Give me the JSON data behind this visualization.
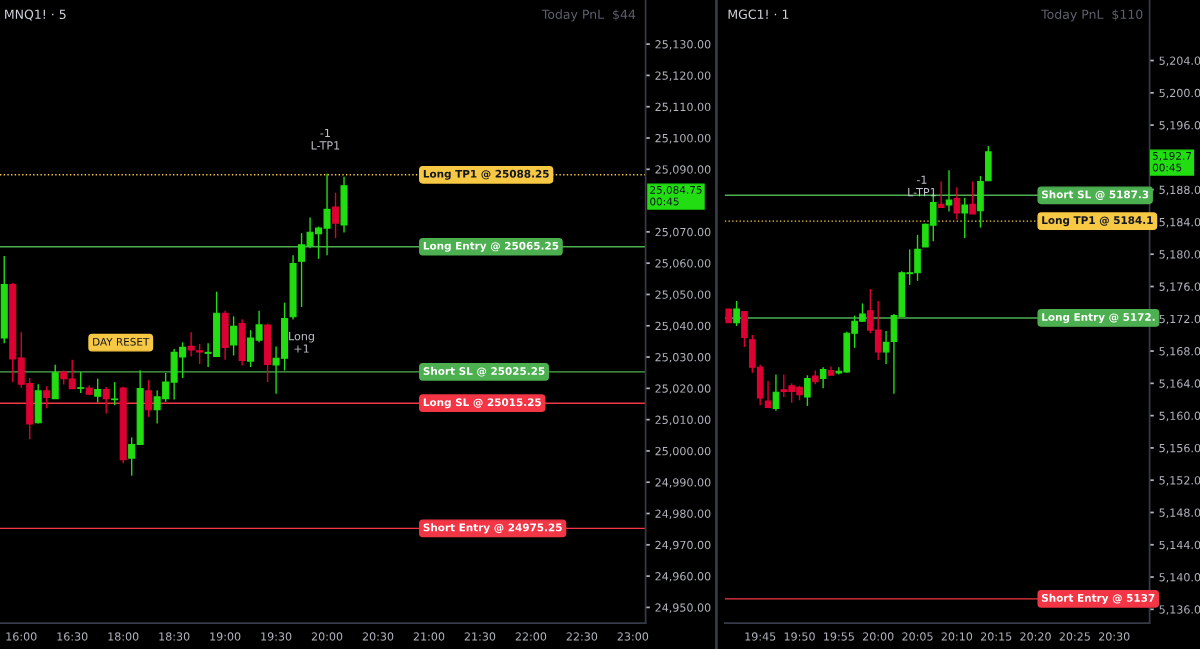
{
  "chart_data": [
    {
      "type": "candlestick",
      "title": "MNQ1! · 5",
      "categories": [
        null,
        null,
        "16:00",
        null,
        null,
        null,
        null,
        null,
        "16:30",
        null,
        null,
        null,
        null,
        null,
        "18:00",
        null,
        null,
        null,
        null,
        null,
        "18:30",
        null,
        null,
        null,
        null,
        null,
        "19:00",
        null,
        null,
        null,
        null,
        null,
        "19:30",
        null,
        null,
        null,
        null,
        null,
        "20:00",
        null,
        null,
        null,
        null,
        null,
        "20:30",
        null,
        null,
        null,
        null,
        null,
        "21:00",
        null,
        null,
        null,
        null,
        null,
        "21:30",
        null,
        null,
        null,
        null,
        null,
        "22:00",
        null,
        null,
        null,
        null,
        null,
        "22:30",
        null,
        null,
        null,
        null,
        null,
        "23:00",
        null
      ],
      "ohlc": [
        [
          25036.1,
          25062.3,
          25034.4,
          25053.2
        ],
        [
          25053.2,
          25053.7,
          25022.0,
          25029.4
        ],
        [
          25029.7,
          25037.9,
          25020.2,
          25021.3
        ],
        [
          25021.5,
          25023.3,
          25003.7,
          25008.6
        ],
        [
          25009.0,
          25021.3,
          25008.8,
          25019.2
        ],
        [
          25019.2,
          25020.7,
          25013.6,
          25017.1
        ],
        [
          25016.7,
          25027.5,
          25016.7,
          25025.0
        ],
        [
          25025.2,
          25025.7,
          25021.2,
          25023.1
        ],
        [
          25023.0,
          25029.1,
          25019.9,
          25019.9
        ],
        [
          25020.0,
          25025.2,
          25018.5,
          25020.2
        ],
        [
          25020.1,
          25021.0,
          25017.8,
          25018.1
        ],
        [
          25017.5,
          25023.1,
          25015.5,
          25019.6
        ],
        [
          25019.6,
          25020.4,
          25012.0,
          25016.7
        ],
        [
          25016.4,
          25022.0,
          25014.6,
          25016.6
        ],
        [
          25020.1,
          25020.5,
          24996.1,
          24997.2
        ],
        [
          24997.7,
          25004.3,
          24992.1,
          25002.0
        ],
        [
          25002.1,
          25025.8,
          25002.1,
          25019.9
        ],
        [
          25019.2,
          25022.6,
          25010.9,
          25013.2
        ],
        [
          25013.2,
          25019.4,
          25008.8,
          25017.3
        ],
        [
          25016.7,
          25024.9,
          25015.7,
          25022.0
        ],
        [
          25022.0,
          25032.6,
          25016.4,
          25031.5
        ],
        [
          25030.0,
          25034.7,
          25023.3,
          25033.1
        ],
        [
          25033.4,
          25037.9,
          25030.2,
          25032.3
        ],
        [
          25032.0,
          25034.2,
          25027.8,
          25031.6
        ],
        [
          25031.2,
          25034.4,
          25026.8,
          25031.5
        ],
        [
          25030.2,
          25050.9,
          25030.0,
          25044.0
        ],
        [
          25044.0,
          25044.8,
          25029.1,
          25033.1
        ],
        [
          25033.9,
          25043.0,
          25030.5,
          25039.8
        ],
        [
          25040.7,
          25042.1,
          25027.3,
          25028.9
        ],
        [
          25028.7,
          25038.6,
          25026.8,
          25036.1
        ],
        [
          25035.4,
          25044.8,
          25034.7,
          25040.3
        ],
        [
          25040.2,
          25040.7,
          25022.0,
          25027.6
        ],
        [
          25027.5,
          25033.4,
          25018.3,
          25029.6
        ],
        [
          25029.6,
          25047.4,
          25025.7,
          25042.3
        ],
        [
          25042.9,
          25062.5,
          25042.0,
          25059.9
        ],
        [
          25060.6,
          25069.6,
          25046.0,
          25065.9
        ],
        [
          25065.7,
          25074.6,
          25064.8,
          25069.9
        ],
        [
          25069.4,
          25071.7,
          25061.4,
          25071.2
        ],
        [
          25071.2,
          25088.6,
          25062.5,
          25077.2
        ],
        [
          25077.9,
          25082.5,
          25068.0,
          25072.8
        ],
        [
          25072.2,
          25087.6,
          25069.8,
          25084.75
        ],
        null,
        null,
        null,
        null,
        null,
        null,
        null,
        null,
        null,
        null,
        null,
        null,
        null,
        null,
        null,
        null,
        null,
        null,
        null,
        null,
        null,
        null,
        null,
        null,
        null,
        null,
        null,
        null,
        null,
        null,
        null,
        null,
        null,
        null,
        null
      ],
      "colors": [
        "#22dd11",
        "#dd0033",
        "#dd0033",
        "#dd0033",
        "#22dd11",
        "#dd0033",
        "#22dd11",
        "#dd0033",
        "#dd0033",
        "#22dd11",
        "#dd0033",
        "#22dd11",
        "#dd0033",
        "#22dd11",
        "#dd0033",
        "#22dd11",
        "#22dd11",
        "#dd0033",
        "#22dd11",
        "#22dd11",
        "#22dd11",
        "#22dd11",
        "#dd0033",
        "#dd0033",
        "#22dd11",
        "#22dd11",
        "#dd0033",
        "#22dd11",
        "#dd0033",
        "#22dd11",
        "#22dd11",
        "#dd0033",
        "#22dd11",
        "#22dd11",
        "#22dd11",
        "#22dd11",
        "#22dd11",
        "#22dd11",
        "#22dd11",
        "#dd0033",
        "#22dd11",
        null,
        null,
        null,
        null,
        null,
        null,
        null,
        null,
        null,
        null,
        null,
        null,
        null,
        null,
        null,
        null,
        null,
        null,
        null,
        null,
        null,
        null,
        null,
        null,
        null,
        null,
        null,
        null,
        null,
        null,
        null,
        null,
        null,
        null,
        null
      ],
      "ylim": [
        24945.0,
        25144.1
      ],
      "yticks": [
        {
          "value": 24950,
          "label": "24,950.00"
        },
        {
          "value": 24960,
          "label": "24,960.00"
        },
        {
          "value": 24970,
          "label": "24,970.00"
        },
        {
          "value": 24980,
          "label": "24,980.00"
        },
        {
          "value": 24990,
          "label": "24,990.00"
        },
        {
          "value": 25000,
          "label": "25,000.00"
        },
        {
          "value": 25010,
          "label": "25,010.00"
        },
        {
          "value": 25020,
          "label": "25,020.00"
        },
        {
          "value": 25030,
          "label": "25,030.00"
        },
        {
          "value": 25040,
          "label": "25,040.00"
        },
        {
          "value": 25050,
          "label": "25,050.00"
        },
        {
          "value": 25060,
          "label": "25,060.00"
        },
        {
          "value": 25070,
          "label": "25,070.00"
        },
        {
          "value": 25090,
          "label": "25,090.00"
        },
        {
          "value": 25100,
          "label": "25,100.00"
        },
        {
          "value": 25110,
          "label": "25,110.00"
        },
        {
          "value": 25120,
          "label": "25,120.00"
        },
        {
          "value": 25130,
          "label": "25,130.00"
        }
      ],
      "ref_lines": [
        {
          "axis": "y",
          "value": 25088.25,
          "label": "Long TP1 @ 25088.25",
          "color": "#f7c843",
          "line_style": "dotted"
        },
        {
          "axis": "y",
          "value": 25065.25,
          "label": "Long Entry @ 25065.25",
          "color": "#4caf50",
          "line_style": "solid"
        },
        {
          "axis": "y",
          "value": 25025.25,
          "label": "Short SL @ 25025.25",
          "color": "#4caf50",
          "line_style": "solid"
        },
        {
          "axis": "y",
          "value": 25015.25,
          "label": "Long SL @ 25015.25",
          "color": "#f23645",
          "line_style": "solid"
        },
        {
          "axis": "y",
          "value": 24975.25,
          "label": "Short Entry @ 24975.25",
          "color": "#f23645",
          "line_style": "solid"
        }
      ],
      "annotations": [
        "DAY RESET",
        "Long\n+1",
        "-1\nL-TP1",
        "25,084.75\n00:45",
        "Today PnL  $44"
      ],
      "grid": false
    },
    {
      "type": "candlestick",
      "title": "MGC1! · 1",
      "categories": [
        null,
        null,
        null,
        null,
        "19:45",
        null,
        null,
        null,
        null,
        "19:50",
        null,
        null,
        null,
        null,
        "19:55",
        null,
        null,
        null,
        null,
        "20:00",
        null,
        null,
        null,
        null,
        "20:05",
        null,
        null,
        null,
        null,
        "20:10",
        null,
        null,
        null,
        null,
        "20:15",
        null,
        null,
        null,
        null,
        "20:20",
        null,
        null,
        null,
        null,
        "20:25",
        null,
        null,
        null,
        null,
        "20:30",
        null,
        null,
        null,
        null
      ],
      "ohlc": [
        [
          5173.2,
          5173.2,
          5171.5,
          5171.5
        ],
        [
          5171.5,
          5174.2,
          5171.1,
          5173.2
        ],
        [
          5172.9,
          5172.9,
          5168.5,
          5169.7
        ],
        [
          5169.4,
          5170.0,
          5165.3,
          5166.0
        ],
        [
          5166.0,
          5166.3,
          5161.3,
          5162.2
        ],
        [
          5161.8,
          5164.3,
          5161.0,
          5161.0
        ],
        [
          5160.9,
          5165.1,
          5160.6,
          5162.9
        ],
        [
          5163.2,
          5165.1,
          5162.3,
          5163.0
        ],
        [
          5163.7,
          5164.0,
          5161.6,
          5163.0
        ],
        [
          5163.5,
          5163.7,
          5161.9,
          5162.6
        ],
        [
          5162.3,
          5165.0,
          5161.2,
          5164.6
        ],
        [
          5164.9,
          5165.6,
          5163.9,
          5164.2
        ],
        [
          5164.6,
          5166.0,
          5163.4,
          5165.7
        ],
        [
          5165.6,
          5166.1,
          5165.0,
          5165.0
        ],
        [
          5165.3,
          5166.0,
          5165.1,
          5165.5
        ],
        [
          5165.4,
          5170.4,
          5165.3,
          5170.2
        ],
        [
          5170.2,
          5172.4,
          5168.4,
          5171.7
        ],
        [
          5171.7,
          5173.9,
          5171.6,
          5172.6
        ],
        [
          5173.0,
          5175.7,
          5170.2,
          5170.6
        ],
        [
          5170.6,
          5174.2,
          5166.9,
          5167.9
        ],
        [
          5167.9,
          5170.5,
          5166.4,
          5169.1
        ],
        [
          5169.2,
          5172.6,
          5162.7,
          5172.4
        ],
        [
          5172.3,
          5177.9,
          5172.3,
          5177.7
        ],
        [
          5177.6,
          5180.6,
          5176.2,
          5177.7
        ],
        [
          5177.7,
          5182.4,
          5176.7,
          5180.6
        ],
        [
          5180.9,
          5183.8,
          5180.9,
          5183.7
        ],
        [
          5183.6,
          5187.5,
          5181.6,
          5186.4
        ],
        [
          5186.2,
          5189.0,
          5185.8,
          5185.8
        ],
        [
          5186.1,
          5190.4,
          5185.3,
          5186.7
        ],
        [
          5186.9,
          5188.3,
          5184.3,
          5185.1
        ],
        [
          5185.1,
          5187.0,
          5182.0,
          5186.1
        ],
        [
          5186.2,
          5189.0,
          5185.0,
          5185.0
        ],
        [
          5185.4,
          5189.7,
          5183.3,
          5189.0
        ],
        [
          5189.1,
          5193.4,
          5189.1,
          5192.7
        ],
        null,
        null,
        null,
        null,
        null,
        null,
        null,
        null,
        null,
        null,
        null,
        null,
        null,
        null,
        null,
        null,
        null,
        null,
        null,
        null
      ],
      "colors": [
        "#dd0033",
        "#22dd11",
        "#dd0033",
        "#dd0033",
        "#dd0033",
        "#dd0033",
        "#22dd11",
        "#dd0033",
        "#dd0033",
        "#dd0033",
        "#22dd11",
        "#dd0033",
        "#22dd11",
        "#dd0033",
        "#22dd11",
        "#22dd11",
        "#22dd11",
        "#22dd11",
        "#dd0033",
        "#dd0033",
        "#22dd11",
        "#22dd11",
        "#22dd11",
        "#22dd11",
        "#22dd11",
        "#22dd11",
        "#22dd11",
        "#dd0033",
        "#22dd11",
        "#dd0033",
        "#22dd11",
        "#dd0033",
        "#22dd11",
        "#22dd11",
        null,
        null,
        null,
        null,
        null,
        null,
        null,
        null,
        null,
        null,
        null,
        null,
        null,
        null,
        null,
        null,
        null,
        null,
        null,
        null
      ],
      "ylim": [
        5134.3,
        5211.5
      ],
      "yticks": [
        {
          "value": 5136,
          "label": "5,136.0"
        },
        {
          "value": 5140,
          "label": "5,140.0"
        },
        {
          "value": 5144,
          "label": "5,144.0"
        },
        {
          "value": 5148,
          "label": "5,148.0"
        },
        {
          "value": 5152,
          "label": "5,152.0"
        },
        {
          "value": 5156,
          "label": "5,156.0"
        },
        {
          "value": 5160,
          "label": "5,160.0"
        },
        {
          "value": 5164,
          "label": "5,164.0"
        },
        {
          "value": 5168,
          "label": "5,168.0"
        },
        {
          "value": 5172,
          "label": "5,172.0"
        },
        {
          "value": 5176,
          "label": "5,176.0"
        },
        {
          "value": 5180,
          "label": "5,180.0"
        },
        {
          "value": 5184,
          "label": "5,184.0"
        },
        {
          "value": 5188,
          "label": "5,188.0"
        },
        {
          "value": 5196,
          "label": "5,196.0"
        },
        {
          "value": 5200,
          "label": "5,200.0"
        },
        {
          "value": 5204,
          "label": "5,204.0"
        }
      ],
      "ref_lines": [
        {
          "axis": "y",
          "value": 5187.3,
          "label": "Short SL @ 5187.3",
          "color": "#4caf50",
          "line_style": "solid"
        },
        {
          "axis": "y",
          "value": 5184.1,
          "label": "Long TP1 @ 5184.1",
          "color": "#f7c843",
          "line_style": "dotted"
        },
        {
          "axis": "y",
          "value": 5172.1,
          "label": "Long Entry @ 5172.",
          "color": "#4caf50",
          "line_style": "solid"
        },
        {
          "axis": "y",
          "value": 5137.3,
          "label": "Short Entry @ 5137",
          "color": "#f23645",
          "line_style": "solid"
        }
      ],
      "annotations": [
        "-1\nL-TP1",
        "5,192.7\n00:45",
        "Today PnL  $110"
      ],
      "grid": false
    }
  ]
}
